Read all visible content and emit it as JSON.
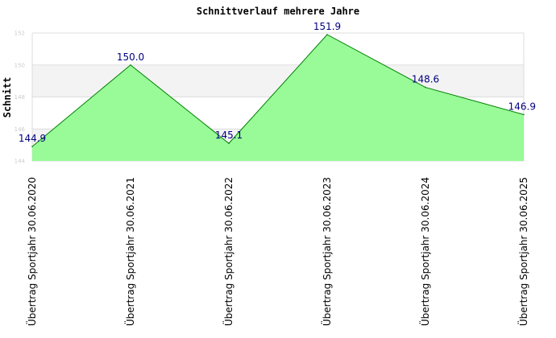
{
  "chart_data": {
    "type": "area",
    "title": "Schnittverlauf mehrere Jahre",
    "xlabel": "",
    "ylabel": "Schnitt",
    "ylim": [
      144,
      152
    ],
    "yticks": [
      "144",
      "146",
      "148",
      "150",
      "152"
    ],
    "categories": [
      "Übertrag Sportjahr 30.06.2020",
      "Übertrag Sportjahr 30.06.2021",
      "Übertrag Sportjahr 30.06.2022",
      "Übertrag Sportjahr 30.06.2023",
      "Übertrag Sportjahr 30.06.2024",
      "Übertrag Sportjahr 30.06.2025"
    ],
    "values": [
      144.9,
      150.0,
      145.1,
      151.9,
      148.6,
      146.9
    ],
    "data_labels": [
      "144.9",
      "150.0",
      "145.1",
      "151.9",
      "148.6",
      "146.9"
    ],
    "grid": true,
    "legend": "none",
    "colors": {
      "fill": "#98fb98",
      "line": "#008000",
      "band_alt": "#f3f3f3",
      "grid": "#dddddd",
      "data_label": "#000080"
    }
  }
}
